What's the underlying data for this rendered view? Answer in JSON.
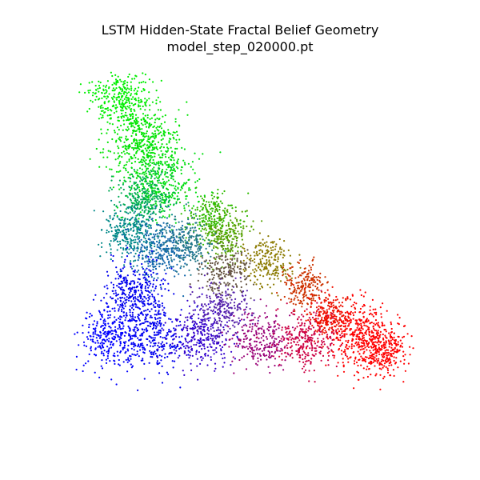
{
  "header": {
    "title": "LSTM Hidden-State Fractal Belief Geometry",
    "subtitle": "model_step_020000.pt"
  },
  "chart_data": {
    "type": "scatter",
    "title": "LSTM Hidden-State Fractal Belief Geometry",
    "subtitle": "model_step_020000.pt",
    "xlabel": "",
    "ylabel": "",
    "axes_visible": false,
    "grid": false,
    "legend": "none",
    "xlim": [
      0,
      1
    ],
    "ylim": [
      0,
      1
    ],
    "coloring": "RGB mixture of three vertex beliefs (red, green, blue)",
    "vertices": [
      {
        "color": "#00ff00",
        "x": 0.13,
        "y": 1.0
      },
      {
        "color": "#0000ff",
        "x": 0.12,
        "y": 0.16
      },
      {
        "color": "#ff0000",
        "x": 0.96,
        "y": 0.1
      }
    ],
    "clusters": [
      {
        "x": 0.14,
        "y": 0.93,
        "color": "#00ee00",
        "spread": 0.045,
        "count": 320
      },
      {
        "x": 0.2,
        "y": 0.8,
        "color": "#00e400",
        "spread": 0.05,
        "count": 420
      },
      {
        "x": 0.25,
        "y": 0.68,
        "color": "#00dd10",
        "spread": 0.05,
        "count": 380
      },
      {
        "x": 0.4,
        "y": 0.57,
        "color": "#30bb00",
        "spread": 0.035,
        "count": 220
      },
      {
        "x": 0.44,
        "y": 0.52,
        "color": "#55a000",
        "spread": 0.035,
        "count": 220
      },
      {
        "x": 0.56,
        "y": 0.44,
        "color": "#8b7a00",
        "spread": 0.035,
        "count": 220
      },
      {
        "x": 0.67,
        "y": 0.37,
        "color": "#cc3300",
        "spread": 0.03,
        "count": 200
      },
      {
        "x": 0.74,
        "y": 0.28,
        "color": "#ee1100",
        "spread": 0.035,
        "count": 260
      },
      {
        "x": 0.83,
        "y": 0.22,
        "color": "#ff0000",
        "spread": 0.045,
        "count": 380
      },
      {
        "x": 0.9,
        "y": 0.18,
        "color": "#ff0000",
        "spread": 0.035,
        "count": 260
      },
      {
        "x": 0.21,
        "y": 0.63,
        "color": "#00aa55",
        "spread": 0.04,
        "count": 260
      },
      {
        "x": 0.17,
        "y": 0.53,
        "color": "#008888",
        "spread": 0.04,
        "count": 280
      },
      {
        "x": 0.25,
        "y": 0.48,
        "color": "#1166aa",
        "spread": 0.045,
        "count": 320
      },
      {
        "x": 0.33,
        "y": 0.5,
        "color": "#227788",
        "spread": 0.035,
        "count": 220
      },
      {
        "x": 0.18,
        "y": 0.35,
        "color": "#0000ee",
        "spread": 0.045,
        "count": 360
      },
      {
        "x": 0.12,
        "y": 0.22,
        "color": "#0000ff",
        "spread": 0.045,
        "count": 320
      },
      {
        "x": 0.24,
        "y": 0.22,
        "color": "#0000ee",
        "spread": 0.045,
        "count": 280
      },
      {
        "x": 0.37,
        "y": 0.22,
        "color": "#3300cc",
        "spread": 0.045,
        "count": 280
      },
      {
        "x": 0.43,
        "y": 0.3,
        "color": "#5522aa",
        "spread": 0.04,
        "count": 240
      },
      {
        "x": 0.44,
        "y": 0.41,
        "color": "#665544",
        "spread": 0.035,
        "count": 200
      },
      {
        "x": 0.54,
        "y": 0.21,
        "color": "#990077",
        "spread": 0.04,
        "count": 240
      },
      {
        "x": 0.67,
        "y": 0.21,
        "color": "#cc0044",
        "spread": 0.045,
        "count": 280
      }
    ]
  }
}
